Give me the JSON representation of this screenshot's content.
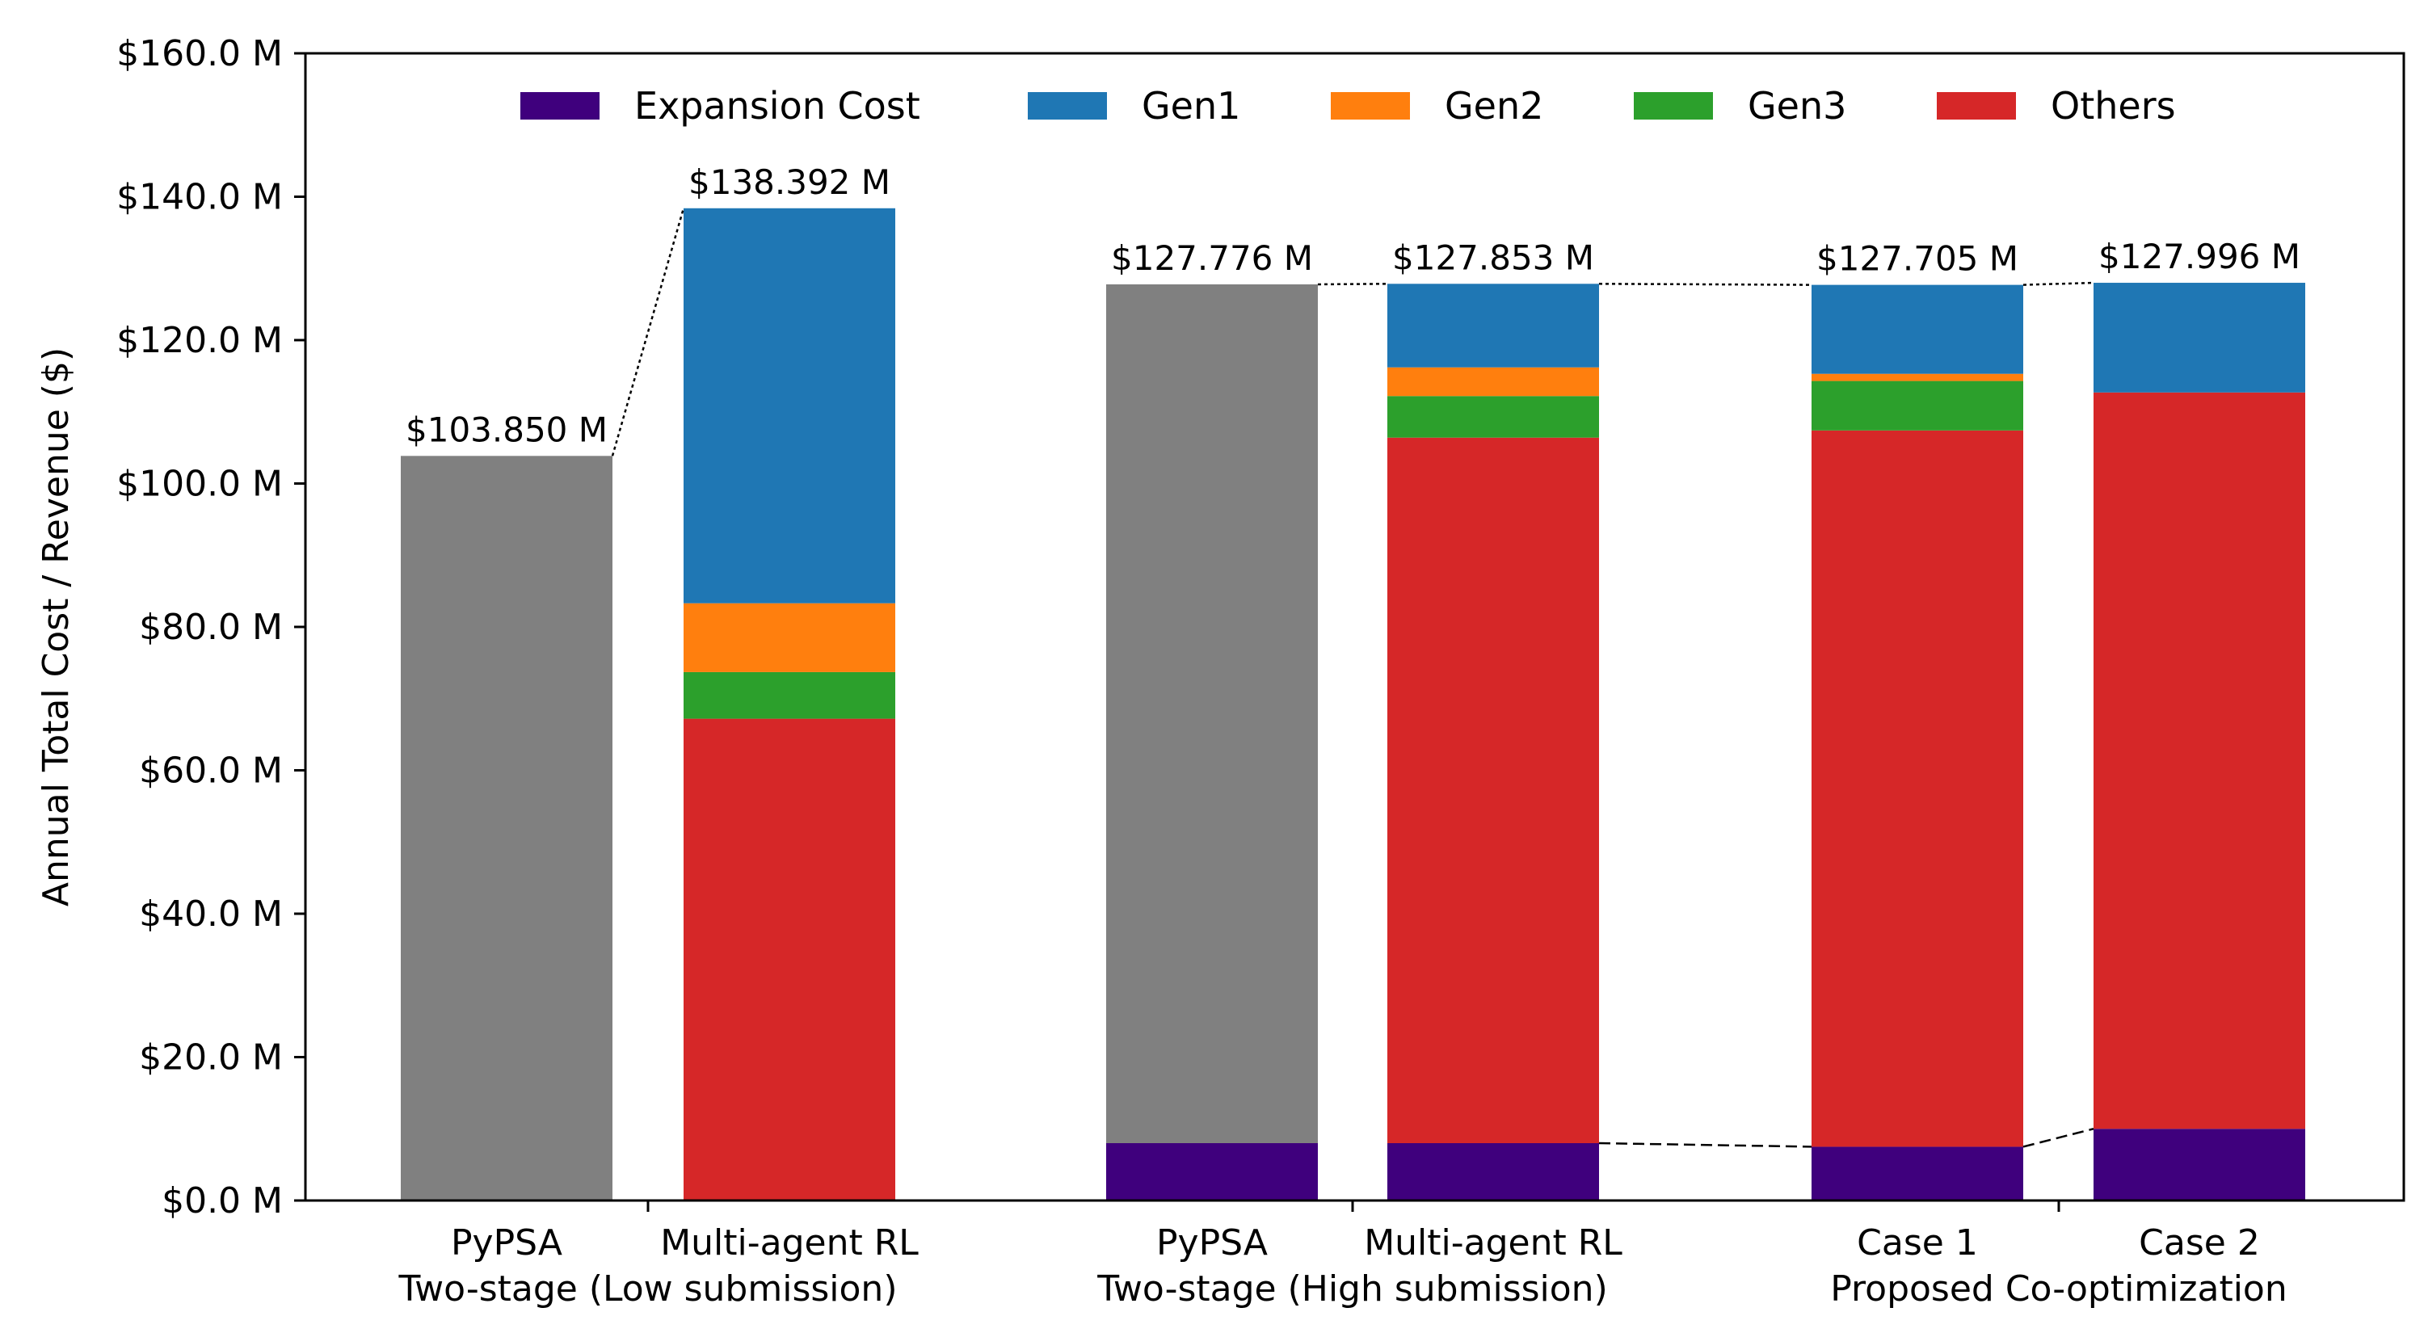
{
  "chart_data": {
    "type": "bar",
    "stacked": true,
    "ylabel": "Annual Total Cost / Revenue ($)",
    "ylim": [
      0,
      160
    ],
    "yticks": [
      "$0.0 M",
      "$20.0 M",
      "$40.0 M",
      "$60.0 M",
      "$80.0 M",
      "$100.0 M",
      "$120.0 M",
      "$140.0 M",
      "$160.0 M"
    ],
    "ytick_values": [
      0,
      20,
      40,
      60,
      80,
      100,
      120,
      140,
      160
    ],
    "legend_position": "top-center",
    "grid": false,
    "groups": [
      {
        "label": "Two-stage (Low submission)"
      },
      {
        "label": "Two-stage (High submission)"
      },
      {
        "label": "Proposed Co-optimization"
      }
    ],
    "bars": [
      {
        "category": "PyPSA",
        "group": 0,
        "total_label": "$103.850 M",
        "total": 103.85,
        "segments": [
          {
            "series": "PyPSA total",
            "value": 103.85
          }
        ]
      },
      {
        "category": "Multi-agent RL",
        "group": 0,
        "total_label": "$138.392 M",
        "total": 138.392,
        "segments": [
          {
            "series": "Expansion Cost",
            "value": 0
          },
          {
            "series": "Others",
            "value": 67.2
          },
          {
            "series": "Gen3",
            "value": 6.5
          },
          {
            "series": "Gen2",
            "value": 9.6
          },
          {
            "series": "Gen1",
            "value": 55.092
          }
        ]
      },
      {
        "category": "PyPSA",
        "group": 1,
        "total_label": "$127.776 M",
        "total": 127.776,
        "segments": [
          {
            "series": "Expansion Cost",
            "value": 8.0
          },
          {
            "series": "PyPSA total",
            "value": 119.776
          }
        ]
      },
      {
        "category": "Multi-agent RL",
        "group": 1,
        "total_label": "$127.853 M",
        "total": 127.853,
        "segments": [
          {
            "series": "Expansion Cost",
            "value": 8.0
          },
          {
            "series": "Others",
            "value": 98.4
          },
          {
            "series": "Gen3",
            "value": 5.8
          },
          {
            "series": "Gen2",
            "value": 4.0
          },
          {
            "series": "Gen1",
            "value": 11.653
          }
        ]
      },
      {
        "category": "Case 1",
        "group": 2,
        "total_label": "$127.705 M",
        "total": 127.705,
        "segments": [
          {
            "series": "Expansion Cost",
            "value": 7.5
          },
          {
            "series": "Others",
            "value": 99.9
          },
          {
            "series": "Gen3",
            "value": 6.9
          },
          {
            "series": "Gen2",
            "value": 1.0
          },
          {
            "series": "Gen1",
            "value": 12.405
          }
        ]
      },
      {
        "category": "Case 2",
        "group": 2,
        "total_label": "$127.996 M",
        "total": 127.996,
        "segments": [
          {
            "series": "Expansion Cost",
            "value": 10.0
          },
          {
            "series": "Others",
            "value": 102.7
          },
          {
            "series": "Gen3",
            "value": 0
          },
          {
            "series": "Gen2",
            "value": 0
          },
          {
            "series": "Gen1",
            "value": 15.296
          }
        ]
      }
    ],
    "series": [
      {
        "name": "Expansion Cost",
        "color": "#3f007d"
      },
      {
        "name": "Gen1",
        "color": "#1f77b4"
      },
      {
        "name": "Gen2",
        "color": "#ff7f0e"
      },
      {
        "name": "Gen3",
        "color": "#2ca02c"
      },
      {
        "name": "Others",
        "color": "#d62728"
      }
    ],
    "unlabeled_colors": {
      "PyPSA total": "#808080"
    },
    "connectors": [
      {
        "from": 0,
        "to": 1,
        "at": "total",
        "style": "dotted"
      },
      {
        "from": 2,
        "to": 3,
        "at": "total",
        "style": "dotted"
      },
      {
        "from": 3,
        "to": 4,
        "at": "total",
        "style": "dotted"
      },
      {
        "from": 4,
        "to": 5,
        "at": "total",
        "style": "dotted"
      },
      {
        "from": 3,
        "to": 4,
        "at": "expansion",
        "style": "dashed"
      },
      {
        "from": 4,
        "to": 5,
        "at": "expansion",
        "style": "dashed"
      }
    ]
  }
}
